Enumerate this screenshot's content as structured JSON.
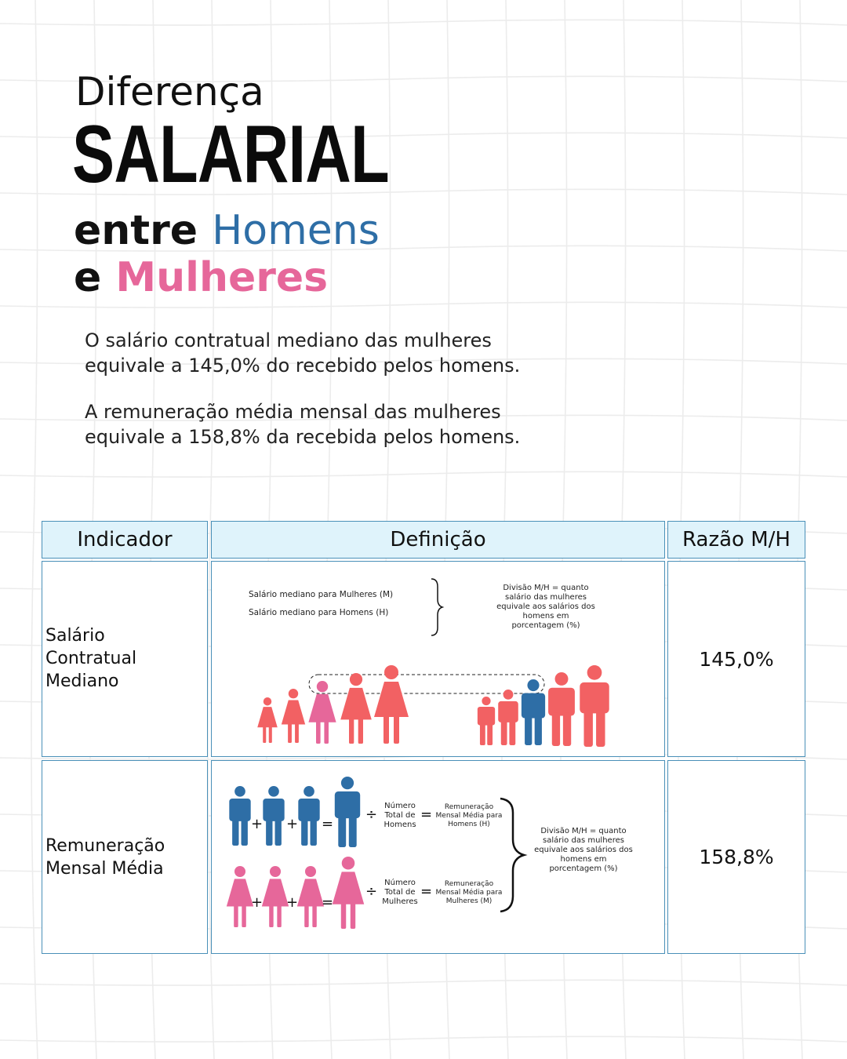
{
  "header": {
    "line1": "Diferença",
    "line2": "SALARIAL",
    "line3_prefix": "entre ",
    "line3_accent": "Homens",
    "line4_prefix": "e ",
    "line4_accent": "Mulheres"
  },
  "paragraphs": [
    "O salário contratual mediano das mulheres equivale a 145,0% do recebido pelos homens.",
    "A remuneração média mensal das mulheres equivale a 158,8% da recebida pelos homens."
  ],
  "colors": {
    "blue": "#2e6ea6",
    "pink": "#e6679a",
    "red": "#f26163",
    "border": "#4a90b8",
    "header_bg": "#dff3fb"
  },
  "table": {
    "headers": [
      "Indicador",
      "Definição",
      "Razão M/H"
    ],
    "rows": [
      {
        "indicator": "Salário Contratual Mediano",
        "ratio": "145,0%",
        "definition": {
          "line_m": "Salário mediano para Mulheres (M)",
          "line_h": "Salário mediano para Homens (H)",
          "division_note": "Divisão M/H = quanto salário das mulheres equivale aos salários dos homens em porcentagem (%)"
        }
      },
      {
        "indicator": "Remuneração Mensal Média",
        "ratio": "158,8%",
        "definition": {
          "men_count": "Número Total de Homens",
          "men_result": "Remuneração Mensal Média para Homens (H)",
          "women_count": "Número Total de Mulheres",
          "women_result": "Remuneração Mensal Média para Mulheres (M)",
          "division_note": "Divisão M/H = quanto salário das mulheres equivale aos salários dos homens em porcentagem (%)",
          "plus": "+",
          "equals": "=",
          "divide": "÷"
        }
      }
    ]
  }
}
